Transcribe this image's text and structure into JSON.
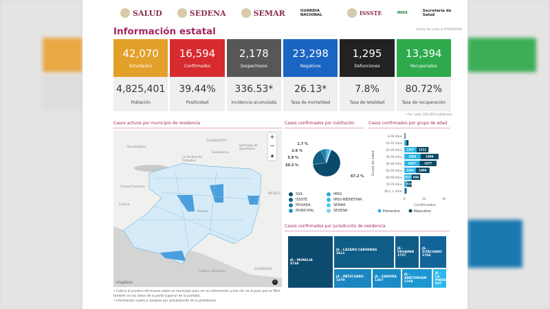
{
  "header": {
    "logos": [
      "SALUD",
      "SEDENA",
      "SEMAR",
      "GUARDIA NACIONAL",
      "ISSSTE",
      "IMSS",
      "Secretaría de Salud"
    ],
    "title": "Información estatal",
    "date": "Fecha de corte al 07/09/2020"
  },
  "cards": [
    {
      "value": "42,070",
      "label": "Estudiados",
      "color": "#e2a12a",
      "sub_value": "4,825,401",
      "sub_label": "Población"
    },
    {
      "value": "16,594",
      "label": "Confirmados",
      "color": "#d72b2f",
      "sub_value": "39.44%",
      "sub_label": "Positividad"
    },
    {
      "value": "2,178",
      "label": "Sospechosos",
      "color": "#575757",
      "sub_value": "336.53*",
      "sub_label": "Incidencia acumulada"
    },
    {
      "value": "23,298",
      "label": "Negativos",
      "color": "#1a64c2",
      "sub_value": "26.13*",
      "sub_label": "Tasa de mortalidad"
    },
    {
      "value": "1,295",
      "label": "Defunciones",
      "color": "#222222",
      "sub_value": "7.8%",
      "sub_label": "Tasa de letalidad"
    },
    {
      "value": "13,394",
      "label": "Recuperados",
      "color": "#2eaa4c",
      "sub_value": "80.72%",
      "sub_label": "Tasa de recuperación"
    }
  ],
  "note": "* Por cada 100,000 habitantes",
  "map": {
    "title": "Casos activos por municipio de residencia",
    "labels": [
      "Guadalajara",
      "GUANAJUATO",
      "Salamanca",
      "Santiago de Querétaro",
      "La Piedad de Cabadas",
      "Ciudad Guzmán",
      "Colima",
      "MÉXICO",
      "GUERRERO",
      "Morelia",
      "Lázaro Cárdenas"
    ],
    "zoom_in": "+",
    "zoom_out": "−",
    "compass": "▲",
    "attribution": "mapbox",
    "info": "i",
    "bullets": [
      "Coloca el puntero del mouse sobre un municipio para ver su información y haz clic en el para que se filtre también en los datos de la parte superior de la pantalla.",
      "Información sujeta a cambios por actualización de la plataforma."
    ]
  },
  "chart_data": [
    {
      "type": "pie",
      "title": "Casos confirmados por institución",
      "categories": [
        "SSA",
        "ISSSTE",
        "PRIVADA",
        "MUNICIPAL",
        "IMSS",
        "IMSS-BIENESTAR",
        "SEMAR",
        "SEDENA"
      ],
      "values": [
        67.2,
        20.3,
        5.9,
        2.6,
        1.7,
        1.2,
        0.7,
        0.4
      ],
      "labels": [
        "67.2 %",
        "20.3 %",
        "5.9 %",
        "2.6 %",
        "1.7 %"
      ],
      "colors": [
        "#0b4a6b",
        "#145f86",
        "#1b7aa6",
        "#2391c2",
        "#2aa7d8",
        "#33b9e6",
        "#52c7ee",
        "#7ad6f4"
      ],
      "legend": "bottom"
    },
    {
      "type": "bar",
      "orientation": "horizontal",
      "stacked": true,
      "title": "Casos confirmados por grupo de edad",
      "xlabel": "Confirmados",
      "ylabel": "Grupo de edad",
      "categories": [
        "0-09 Años",
        "10-19 Años",
        "20-29 Años",
        "30-39 Años",
        "40-49 Años",
        "50-59 Años",
        "60-69 Años",
        "70-79 Años",
        "80 y + Años"
      ],
      "xticks": [
        "0",
        "2k",
        "4k"
      ],
      "xlim": [
        0,
        4400
      ],
      "series": [
        {
          "name": "Femenino",
          "color": "#29b6e6",
          "values": [
            60,
            230,
            1367,
            1803,
            1687,
            1294,
            817,
            300,
            110
          ],
          "labels": [
            "",
            "",
            "1367",
            "1803",
            "1687",
            "1294",
            "817",
            "",
            ""
          ]
        },
        {
          "name": "Masculino",
          "color": "#0c4a66",
          "values": [
            70,
            240,
            1311,
            1988,
            1877,
            1496,
            944,
            531,
            140
          ],
          "labels": [
            "",
            "",
            "1311",
            "1988",
            "1877",
            "1496",
            "944",
            "531",
            ""
          ]
        }
      ],
      "legend": "bottom"
    },
    {
      "type": "treemap",
      "title": "Casos confirmados por jurisdicción de residencia",
      "categories": [
        "JS - MORELIA",
        "JS - LÁZARO CÁRDENAS",
        "JS - URUAPAN",
        "JS - ZITÁCUARO",
        "JS - PÁTZCUARO",
        "JS - ZAMORA",
        "JS - APATZINGÁN",
        "JS - LA PIEDAD"
      ],
      "values": [
        "4748",
        "3611",
        "2757",
        "1700",
        "1470",
        "1367",
        "1769",
        "837"
      ],
      "colors": [
        "#0c4a6e",
        "#0f5c86",
        "#105e88",
        "#12649a",
        "#1b86c0",
        "#1a8bc6",
        "#1d97d2",
        "#2cb8ea"
      ]
    }
  ]
}
